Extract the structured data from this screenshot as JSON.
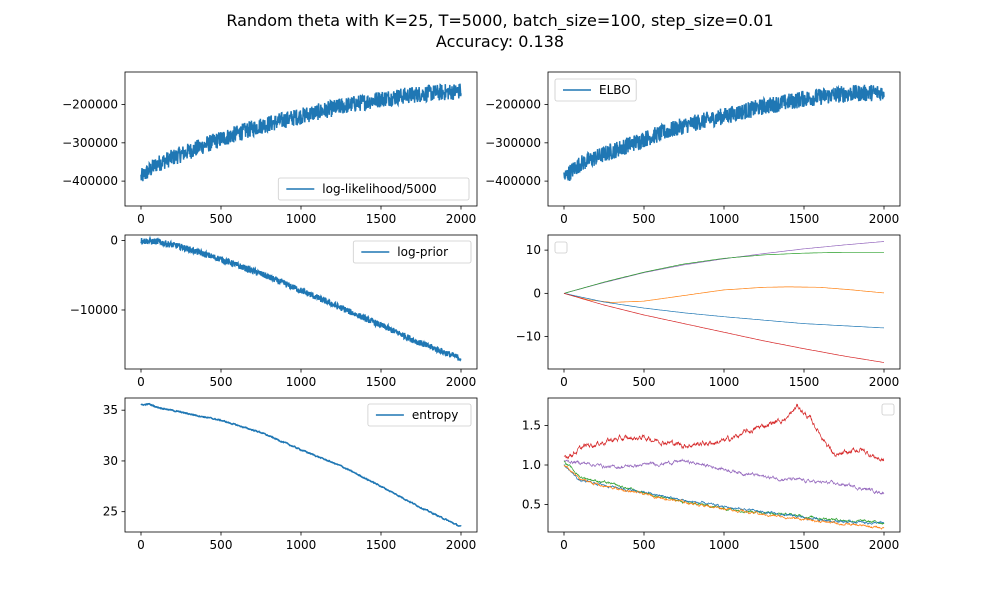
{
  "figure": {
    "title_line1": "Random theta with K=25, T=5000, batch_size=100, step_size=0.01",
    "title_line2": "Accuracy: 0.138"
  },
  "colors": {
    "primary": "#1f77b4",
    "tab": [
      "#1f77b4",
      "#ff7f0e",
      "#2ca02c",
      "#d62728",
      "#9467bd"
    ]
  },
  "chart_data": [
    {
      "id": "loglik",
      "type": "line",
      "xlim": [
        -100,
        2100
      ],
      "ylim": [
        -465000,
        -115000
      ],
      "xticks": [
        0,
        500,
        1000,
        1500,
        2000
      ],
      "xtick_labels": [
        "0",
        "500",
        "1000",
        "1500",
        "2000"
      ],
      "yticks": [
        -400000,
        -300000,
        -200000
      ],
      "ytick_labels": [
        "−400000",
        "−300000",
        "−200000"
      ],
      "legend": {
        "placement": "lower-right",
        "entries": [
          "log-likelihood/5000"
        ]
      },
      "series": [
        {
          "name": "log-likelihood/5000",
          "color": "#1f77b4",
          "noise": 22000,
          "x": [
            0,
            100,
            250,
            500,
            750,
            1000,
            1250,
            1500,
            1750,
            2000
          ],
          "y": [
            -390000,
            -355000,
            -330000,
            -290000,
            -255000,
            -230000,
            -205000,
            -185000,
            -172000,
            -165000
          ]
        }
      ]
    },
    {
      "id": "elbo",
      "type": "line",
      "xlim": [
        -100,
        2100
      ],
      "ylim": [
        -465000,
        -115000
      ],
      "xticks": [
        0,
        500,
        1000,
        1500,
        2000
      ],
      "xtick_labels": [
        "0",
        "500",
        "1000",
        "1500",
        "2000"
      ],
      "yticks": [
        -400000,
        -300000,
        -200000
      ],
      "ytick_labels": [
        "−400000",
        "−300000",
        "−200000"
      ],
      "legend": {
        "placement": "upper-left",
        "entries": [
          "ELBO"
        ]
      },
      "series": [
        {
          "name": "ELBO",
          "color": "#1f77b4",
          "noise": 22000,
          "x": [
            0,
            100,
            250,
            500,
            750,
            1000,
            1250,
            1500,
            1750,
            2000
          ],
          "y": [
            -390000,
            -355000,
            -330000,
            -290000,
            -255000,
            -230000,
            -205000,
            -185000,
            -172000,
            -168000
          ]
        }
      ]
    },
    {
      "id": "logprior",
      "type": "line",
      "xlim": [
        -100,
        2100
      ],
      "ylim": [
        -18500,
        800
      ],
      "xticks": [
        0,
        500,
        1000,
        1500,
        2000
      ],
      "xtick_labels": [
        "0",
        "500",
        "1000",
        "1500",
        "2000"
      ],
      "yticks": [
        -10000,
        0
      ],
      "ytick_labels": [
        "−10000",
        "0"
      ],
      "legend": {
        "placement": "upper-right",
        "entries": [
          "log-prior"
        ]
      },
      "series": [
        {
          "name": "log-prior",
          "color": "#1f77b4",
          "noise": 450,
          "x": [
            0,
            100,
            250,
            500,
            750,
            1000,
            1250,
            1500,
            1750,
            2000
          ],
          "y": [
            0,
            -150,
            -900,
            -2700,
            -4800,
            -7200,
            -9700,
            -12200,
            -14800,
            -17000
          ]
        }
      ]
    },
    {
      "id": "params1",
      "type": "line",
      "xlim": [
        -100,
        2100
      ],
      "ylim": [
        -17.5,
        13.5
      ],
      "xticks": [
        0,
        500,
        1000,
        1500,
        2000
      ],
      "xtick_labels": [
        "0",
        "500",
        "1000",
        "1500",
        "2000"
      ],
      "yticks": [
        -10,
        0,
        10
      ],
      "ytick_labels": [
        "−10",
        "0",
        "10"
      ],
      "legend": {
        "placement": "upper-left",
        "entries": []
      },
      "series": [
        {
          "color": "#9467bd",
          "x": [
            0,
            250,
            500,
            750,
            1000,
            1250,
            1500,
            1750,
            2000
          ],
          "y": [
            0,
            2.5,
            4.8,
            6.6,
            8.0,
            9.2,
            10.3,
            11.2,
            12.0
          ]
        },
        {
          "color": "#2ca02c",
          "x": [
            0,
            250,
            500,
            750,
            1000,
            1250,
            1500,
            1750,
            2000
          ],
          "y": [
            0,
            2.6,
            4.9,
            6.8,
            8.1,
            8.9,
            9.3,
            9.5,
            9.5
          ]
        },
        {
          "color": "#ff7f0e",
          "x": [
            0,
            150,
            300,
            500,
            750,
            1000,
            1250,
            1400,
            1600,
            1800,
            2000
          ],
          "y": [
            0,
            -1.5,
            -2.1,
            -1.8,
            -0.5,
            0.8,
            1.4,
            1.5,
            1.4,
            0.8,
            0.1
          ]
        },
        {
          "color": "#1f77b4",
          "x": [
            0,
            250,
            500,
            750,
            1000,
            1250,
            1500,
            1750,
            2000
          ],
          "y": [
            0,
            -2.0,
            -3.4,
            -4.5,
            -5.4,
            -6.2,
            -7.0,
            -7.5,
            -8.0
          ]
        },
        {
          "color": "#d62728",
          "x": [
            0,
            250,
            500,
            750,
            1000,
            1250,
            1500,
            1750,
            2000
          ],
          "y": [
            0,
            -2.7,
            -5.0,
            -7.0,
            -9.0,
            -11.0,
            -12.8,
            -14.5,
            -16.0
          ]
        }
      ]
    },
    {
      "id": "entropy",
      "type": "line",
      "xlim": [
        -100,
        2100
      ],
      "ylim": [
        23,
        36.2
      ],
      "xticks": [
        0,
        500,
        1000,
        1500,
        2000
      ],
      "xtick_labels": [
        "0",
        "500",
        "1000",
        "1500",
        "2000"
      ],
      "yticks": [
        25,
        30,
        35
      ],
      "ytick_labels": [
        "25",
        "30",
        "35"
      ],
      "legend": {
        "placement": "upper-right",
        "entries": [
          "entropy"
        ]
      },
      "series": [
        {
          "name": "entropy",
          "color": "#1f77b4",
          "noise": 0.08,
          "x": [
            0,
            50,
            100,
            250,
            500,
            750,
            1000,
            1250,
            1500,
            1750,
            2000
          ],
          "y": [
            35.5,
            35.6,
            35.3,
            34.8,
            34.0,
            32.8,
            31.1,
            29.5,
            27.5,
            25.4,
            23.5
          ]
        }
      ]
    },
    {
      "id": "params2",
      "type": "line",
      "xlim": [
        -100,
        2100
      ],
      "ylim": [
        0.15,
        1.85
      ],
      "xticks": [
        0,
        500,
        1000,
        1500,
        2000
      ],
      "xtick_labels": [
        "0",
        "500",
        "1000",
        "1500",
        "2000"
      ],
      "yticks": [
        0.5,
        1.0,
        1.5
      ],
      "ytick_labels": [
        "0.5",
        "1.0",
        "1.5"
      ],
      "legend": {
        "placement": "upper-right",
        "entries": []
      },
      "series": [
        {
          "color": "#d62728",
          "noise": 0.04,
          "x": [
            0,
            150,
            300,
            500,
            750,
            1000,
            1250,
            1400,
            1460,
            1550,
            1700,
            1850,
            2000
          ],
          "y": [
            1.1,
            1.25,
            1.32,
            1.35,
            1.25,
            1.3,
            1.5,
            1.6,
            1.75,
            1.55,
            1.1,
            1.2,
            1.05
          ]
        },
        {
          "color": "#9467bd",
          "noise": 0.025,
          "x": [
            0,
            150,
            300,
            500,
            750,
            1000,
            1250,
            1500,
            1750,
            2000
          ],
          "y": [
            1.05,
            1.02,
            0.97,
            1.0,
            1.05,
            0.95,
            0.85,
            0.8,
            0.75,
            0.65
          ]
        },
        {
          "color": "#2ca02c",
          "noise": 0.018,
          "x": [
            0,
            100,
            250,
            500,
            750,
            1000,
            1250,
            1500,
            1750,
            2000
          ],
          "y": [
            1.05,
            0.85,
            0.78,
            0.65,
            0.53,
            0.45,
            0.4,
            0.35,
            0.3,
            0.27
          ]
        },
        {
          "color": "#1f77b4",
          "noise": 0.018,
          "x": [
            0,
            100,
            250,
            500,
            750,
            1000,
            1250,
            1500,
            1750,
            2000
          ],
          "y": [
            1.0,
            0.8,
            0.75,
            0.65,
            0.55,
            0.47,
            0.4,
            0.33,
            0.28,
            0.26
          ]
        },
        {
          "color": "#ff7f0e",
          "noise": 0.018,
          "x": [
            0,
            100,
            250,
            500,
            750,
            1000,
            1250,
            1500,
            1750,
            2000
          ],
          "y": [
            1.0,
            0.82,
            0.73,
            0.63,
            0.53,
            0.45,
            0.37,
            0.31,
            0.25,
            0.2
          ]
        }
      ]
    }
  ]
}
